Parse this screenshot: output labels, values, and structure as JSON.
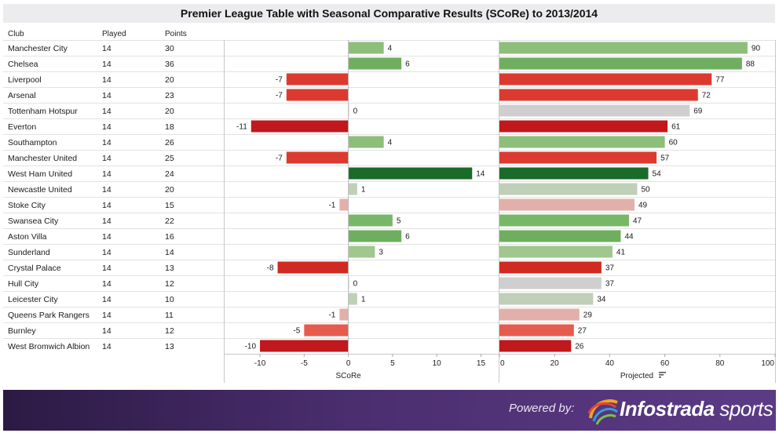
{
  "title": "Premier League Table with Seasonal Comparative Results (SCoRe) to 2013/2014",
  "columns": {
    "club": "Club",
    "played": "Played",
    "points": "Points"
  },
  "rows": [
    {
      "club": "Manchester City",
      "played": "14",
      "points": "30"
    },
    {
      "club": "Chelsea",
      "played": "14",
      "points": "36"
    },
    {
      "club": "Liverpool",
      "played": "14",
      "points": "20"
    },
    {
      "club": "Arsenal",
      "played": "14",
      "points": "23"
    },
    {
      "club": "Tottenham Hotspur",
      "played": "14",
      "points": "20"
    },
    {
      "club": "Everton",
      "played": "14",
      "points": "18"
    },
    {
      "club": "Southampton",
      "played": "14",
      "points": "26"
    },
    {
      "club": "Manchester United",
      "played": "14",
      "points": "25"
    },
    {
      "club": "West Ham United",
      "played": "14",
      "points": "24"
    },
    {
      "club": "Newcastle United",
      "played": "14",
      "points": "20"
    },
    {
      "club": "Stoke City",
      "played": "14",
      "points": "15"
    },
    {
      "club": "Swansea City",
      "played": "14",
      "points": "22"
    },
    {
      "club": "Aston Villa",
      "played": "14",
      "points": "16"
    },
    {
      "club": "Sunderland",
      "played": "14",
      "points": "14"
    },
    {
      "club": "Crystal Palace",
      "played": "14",
      "points": "13"
    },
    {
      "club": "Hull City",
      "played": "14",
      "points": "12"
    },
    {
      "club": "Leicester City",
      "played": "14",
      "points": "10"
    },
    {
      "club": "Queens Park Rangers",
      "played": "14",
      "points": "11"
    },
    {
      "club": "Burnley",
      "played": "14",
      "points": "12"
    },
    {
      "club": "West Bromwich Albion",
      "played": "14",
      "points": "13"
    }
  ],
  "chart_data": [
    {
      "type": "bar",
      "orientation": "horizontal",
      "title": "",
      "xlabel": "SCoRe",
      "xlim": [
        -14,
        17
      ],
      "ticks": [
        -10,
        -5,
        0,
        5,
        10,
        15
      ],
      "tick_labels": [
        "-10",
        "-5",
        "0",
        "5",
        "10",
        "15"
      ],
      "values": [
        4,
        6,
        -7,
        -7,
        0,
        -11,
        4,
        -7,
        14,
        1,
        -1,
        5,
        6,
        3,
        -8,
        0,
        1,
        -1,
        -5,
        -10
      ],
      "colors": [
        "#8dbe7a",
        "#6fae5f",
        "#dc3a30",
        "#dc3a30",
        "#cfcfcf",
        "#c0181d",
        "#8dbe7a",
        "#dc3a30",
        "#1a6a2a",
        "#c0cfb8",
        "#e2b0ab",
        "#79b768",
        "#6fae5f",
        "#9fc78e",
        "#d02a22",
        "#cfcfcf",
        "#c0cfb8",
        "#e2b0ab",
        "#e55b4d",
        "#c0181d"
      ]
    },
    {
      "type": "bar",
      "orientation": "horizontal",
      "title": "",
      "xlabel": "Projected",
      "xlim": [
        0,
        100
      ],
      "ticks": [
        0,
        20,
        40,
        60,
        80,
        100
      ],
      "tick_labels": [
        "0",
        "20",
        "40",
        "60",
        "80",
        "100"
      ],
      "values": [
        90,
        88,
        77,
        72,
        69,
        61,
        60,
        57,
        54,
        50,
        49,
        47,
        44,
        41,
        37,
        37,
        34,
        29,
        27,
        26
      ],
      "colors": [
        "#8dbe7a",
        "#6fae5f",
        "#dc3a30",
        "#dc3a30",
        "#cfcfcf",
        "#c0181d",
        "#8dbe7a",
        "#dc3a30",
        "#1a6a2a",
        "#c0cfb8",
        "#e2b0ab",
        "#79b768",
        "#6fae5f",
        "#9fc78e",
        "#d02a22",
        "#cfcfcf",
        "#c0cfb8",
        "#e2b0ab",
        "#e55b4d",
        "#c0181d"
      ]
    }
  ],
  "footer": {
    "powered_by": "Powered by:",
    "brand_a": "Infostrada",
    "brand_b": "sports"
  },
  "icons": {
    "sort": "sort-descending-icon",
    "logo": "infostrada-swirl-logo"
  }
}
